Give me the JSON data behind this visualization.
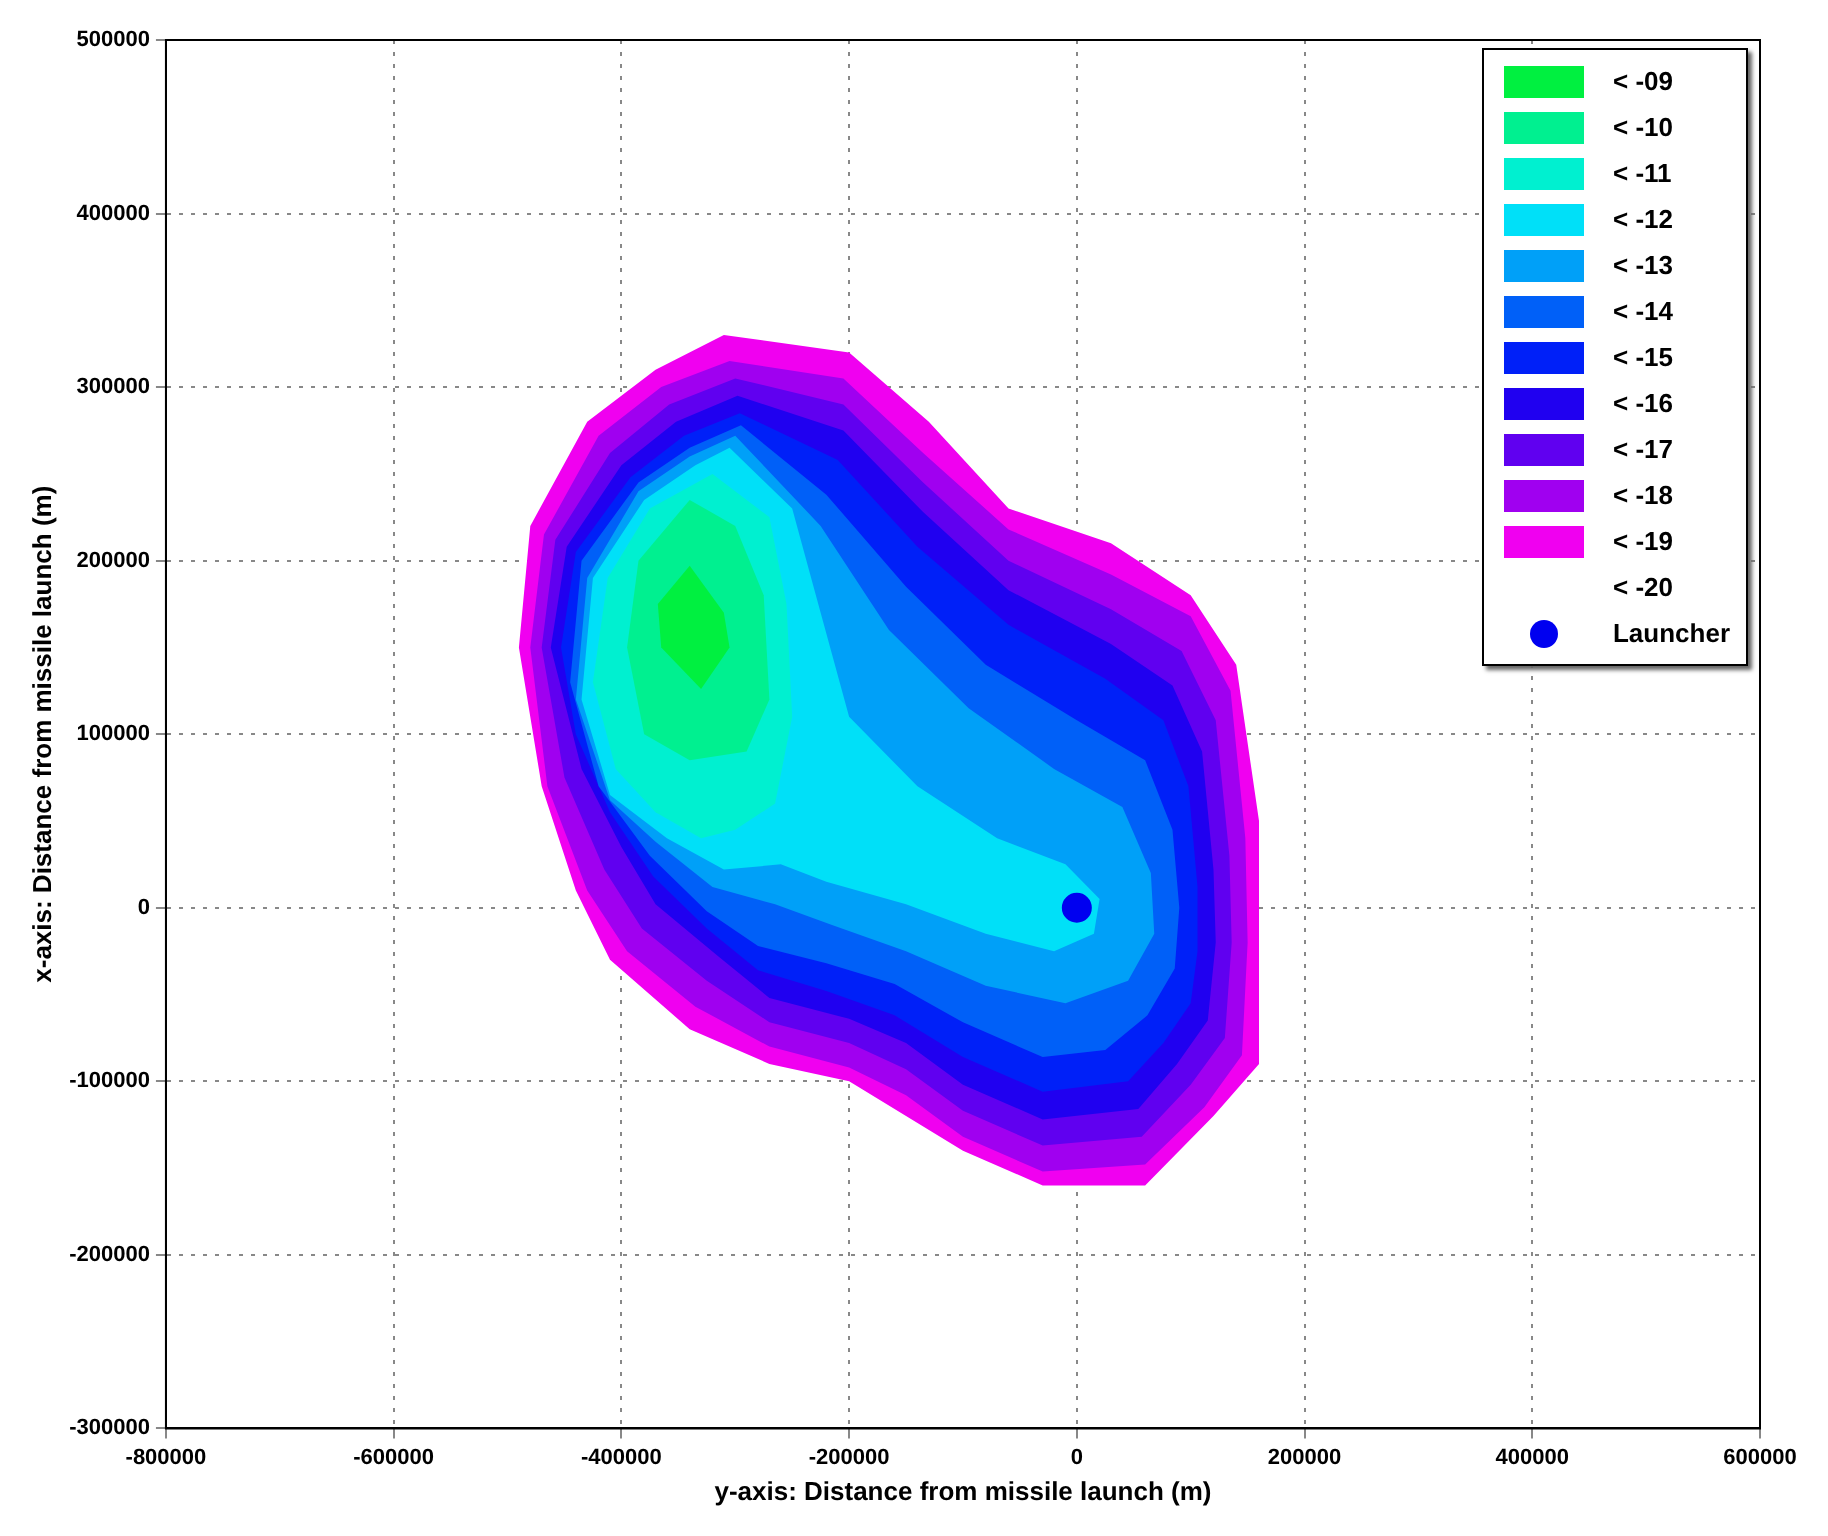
{
  "chart_data": {
    "type": "area",
    "xlabel": "y-axis: Distance from missile launch (m)",
    "ylabel": "x-axis: Distance from missile launch (m)",
    "xlim": [
      -800000,
      600000
    ],
    "xticks": [
      -800000,
      -600000,
      -400000,
      -200000,
      0,
      200000,
      400000,
      600000
    ],
    "ylim": [
      -300000,
      500000
    ],
    "yticks": [
      -300000,
      -200000,
      -100000,
      0,
      100000,
      200000,
      300000,
      400000,
      500000
    ],
    "grid": true,
    "legend": "top right",
    "series": [
      {
        "name": "< -09",
        "color": "#00f040",
        "x": [
          -340000,
          -310000,
          -305000,
          -330000,
          -365000,
          -368000
        ],
        "values": [
          197000,
          170000,
          150000,
          126000,
          150000,
          175000
        ]
      },
      {
        "name": "< -10",
        "color": "#00f090",
        "x": [
          -340000,
          -300000,
          -275000,
          -270000,
          -290000,
          -340000,
          -380000,
          -395000,
          -385000
        ],
        "values": [
          235000,
          220000,
          180000,
          120000,
          90000,
          85000,
          100000,
          150000,
          200000
        ]
      },
      {
        "name": "< -11",
        "color": "#00f0d0",
        "x": [
          -320000,
          -270000,
          -255000,
          -250000,
          -265000,
          -300000,
          -330000,
          -370000,
          -405000,
          -425000,
          -412000,
          -375000
        ],
        "values": [
          250000,
          225000,
          175000,
          110000,
          60000,
          45000,
          40000,
          55000,
          80000,
          130000,
          190000,
          230000
        ]
      },
      {
        "name": "< -12",
        "color": "#00e0f8",
        "x": [
          -305000,
          -250000,
          -225000,
          -200000,
          -140000,
          -70000,
          -10000,
          20000,
          15000,
          -20000,
          -80000,
          -150000,
          -220000,
          -260000,
          -310000,
          -360000,
          -410000,
          -435000,
          -425000,
          -380000,
          -335000
        ],
        "values": [
          265000,
          230000,
          170000,
          110000,
          70000,
          40000,
          25000,
          5000,
          -15000,
          -25000,
          -15000,
          2000,
          15000,
          25000,
          22000,
          40000,
          65000,
          120000,
          190000,
          235000,
          255000
        ]
      },
      {
        "name": "< -13",
        "color": "#00a0f8",
        "x": [
          -300000,
          -225000,
          -165000,
          -95000,
          -20000,
          40000,
          65000,
          68000,
          45000,
          -10000,
          -80000,
          -150000,
          -215000,
          -265000,
          -320000,
          -370000,
          -410000,
          -440000,
          -430000,
          -385000,
          -340000
        ],
        "values": [
          272000,
          220000,
          160000,
          115000,
          80000,
          58000,
          20000,
          -15000,
          -42000,
          -55000,
          -45000,
          -25000,
          -10000,
          2000,
          12000,
          38000,
          62000,
          120000,
          190000,
          240000,
          260000
        ]
      },
      {
        "name": "< -14",
        "color": "#0060f8",
        "x": [
          -295000,
          -220000,
          -150000,
          -80000,
          0,
          60000,
          84000,
          90000,
          86000,
          62000,
          25000,
          -30000,
          -100000,
          -160000,
          -220000,
          -280000,
          -325000,
          -375000,
          -420000,
          -445000,
          -435000,
          -385000,
          -340000
        ],
        "values": [
          278000,
          238000,
          185000,
          140000,
          108000,
          85000,
          45000,
          0,
          -35000,
          -62000,
          -82000,
          -86000,
          -66000,
          -44000,
          -32000,
          -22000,
          -2000,
          30000,
          70000,
          130000,
          200000,
          245000,
          265000
        ]
      },
      {
        "name": "< -15",
        "color": "#0020f8",
        "x": [
          -296000,
          -210000,
          -140000,
          -60000,
          25000,
          76000,
          98000,
          106000,
          106000,
          100000,
          76000,
          45000,
          -30000,
          -100000,
          -160000,
          -220000,
          -280000,
          -325000,
          -372000,
          -410000,
          -440000,
          -453000,
          -440000,
          -392000,
          -345000
        ],
        "values": [
          285000,
          258000,
          208000,
          163000,
          132000,
          108000,
          70000,
          12000,
          -25000,
          -55000,
          -78000,
          -100000,
          -106000,
          -86000,
          -62000,
          -48000,
          -36000,
          -12000,
          18000,
          55000,
          100000,
          150000,
          205000,
          248000,
          272000
        ]
      },
      {
        "name": "< -16",
        "color": "#2000f0",
        "x": [
          -298000,
          -205000,
          -135000,
          -60000,
          30000,
          84000,
          110000,
          120000,
          122000,
          115000,
          88000,
          54000,
          -30000,
          -100000,
          -150000,
          -200000,
          -270000,
          -315000,
          -370000,
          -400000,
          -435000,
          -462000,
          -448000,
          -400000,
          -352000
        ],
        "values": [
          295000,
          275000,
          228000,
          183000,
          152000,
          128000,
          90000,
          22000,
          -20000,
          -65000,
          -90000,
          -116000,
          -122000,
          -102000,
          -78000,
          -64000,
          -52000,
          -28000,
          2000,
          35000,
          80000,
          150000,
          208000,
          255000,
          280000
        ]
      },
      {
        "name": "< -17",
        "color": "#6000f0",
        "x": [
          -300000,
          -205000,
          -135000,
          -60000,
          30000,
          92000,
          122000,
          134000,
          136000,
          130000,
          100000,
          57000,
          -30000,
          -100000,
          -150000,
          -200000,
          -270000,
          -325000,
          -382000,
          -415000,
          -450000,
          -470000,
          -458000,
          -410000,
          -358000
        ],
        "values": [
          305000,
          290000,
          245000,
          200000,
          172000,
          148000,
          108000,
          30000,
          -20000,
          -75000,
          -102000,
          -132000,
          -137000,
          -117000,
          -93000,
          -78000,
          -66000,
          -42000,
          -12000,
          22000,
          75000,
          150000,
          212000,
          262000,
          290000
        ]
      },
      {
        "name": "< -18",
        "color": "#a000f0",
        "x": [
          -305000,
          -205000,
          -135000,
          -60000,
          30000,
          100000,
          135000,
          148000,
          150000,
          145000,
          112000,
          60000,
          -30000,
          -100000,
          -150000,
          -200000,
          -270000,
          -335000,
          -395000,
          -430000,
          -465000,
          -480000,
          -468000,
          -420000,
          -365000
        ],
        "values": [
          315000,
          305000,
          262000,
          218000,
          192000,
          168000,
          125000,
          40000,
          -20000,
          -85000,
          -115000,
          -148000,
          -152000,
          -132000,
          -108000,
          -92000,
          -80000,
          -57000,
          -25000,
          10000,
          70000,
          150000,
          215000,
          272000,
          300000
        ]
      },
      {
        "name": "< -19",
        "color": "#f000f0",
        "x": [
          -310000,
          -200000,
          -130000,
          -60000,
          30000,
          100000,
          140000,
          160000,
          160000,
          160000,
          120000,
          60000,
          -30000,
          -100000,
          -150000,
          -200000,
          -270000,
          -340000,
          -410000,
          -440000,
          -470000,
          -490000,
          -480000,
          -430000,
          -370000
        ],
        "values": [
          330000,
          320000,
          280000,
          230000,
          210000,
          180000,
          140000,
          50000,
          -20000,
          -90000,
          -120000,
          -160000,
          -160000,
          -140000,
          -120000,
          -100000,
          -90000,
          -70000,
          -30000,
          10000,
          70000,
          150000,
          220000,
          280000,
          310000
        ]
      },
      {
        "name": "< -20"
      },
      {
        "name": "Launcher",
        "color": "#0000f0",
        "type": "scatter",
        "marker": "circle",
        "x": [
          0
        ],
        "values": [
          0
        ]
      }
    ]
  }
}
